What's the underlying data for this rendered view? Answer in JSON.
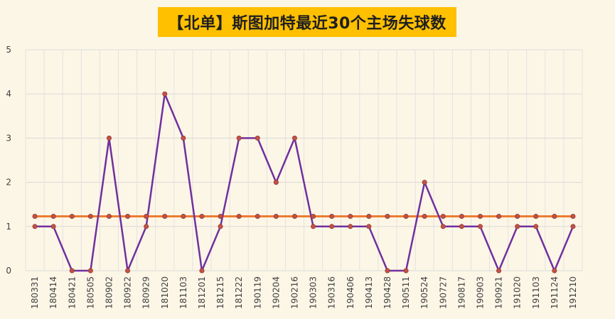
{
  "chart_data": {
    "type": "line",
    "title": "【北单】斯图加特最近30个主场失球数",
    "categories": [
      "180331",
      "180414",
      "180421",
      "180505",
      "180902",
      "180922",
      "180929",
      "181020",
      "181103",
      "181201",
      "181215",
      "181222",
      "190119",
      "190204",
      "190216",
      "190303",
      "190316",
      "190406",
      "190413",
      "190428",
      "190511",
      "190524",
      "190727",
      "190817",
      "190903",
      "190921",
      "191020",
      "191103",
      "191124",
      "191210"
    ],
    "series": [
      {
        "color": "#7030a0",
        "values": [
          1,
          1,
          0,
          0,
          3,
          0,
          1,
          4,
          3,
          0,
          1,
          3,
          3,
          2,
          3,
          1,
          1,
          1,
          1,
          0,
          0,
          2,
          1,
          1,
          1,
          0,
          1,
          1,
          0,
          1
        ]
      },
      {
        "color": "#ed7d31",
        "values": [
          1.23,
          1.23,
          1.23,
          1.23,
          1.23,
          1.23,
          1.23,
          1.23,
          1.23,
          1.23,
          1.23,
          1.23,
          1.23,
          1.23,
          1.23,
          1.23,
          1.23,
          1.23,
          1.23,
          1.23,
          1.23,
          1.23,
          1.23,
          1.23,
          1.23,
          1.23,
          1.23,
          1.23,
          1.23,
          1.23
        ]
      }
    ],
    "marker_color": "#c0504d",
    "ylim": [
      0,
      5
    ],
    "yticks": [
      "0",
      "1",
      "2",
      "3",
      "4",
      "5"
    ],
    "grid": true,
    "xlabel": "",
    "ylabel": ""
  }
}
